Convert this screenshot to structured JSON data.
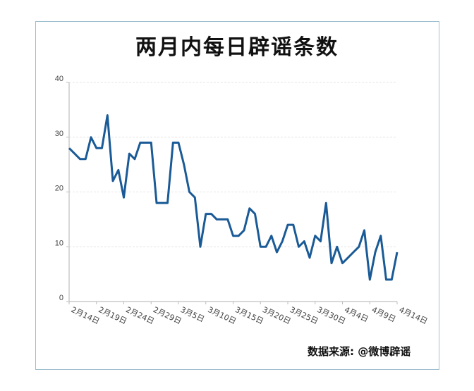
{
  "chart_data": {
    "type": "line",
    "title": "两月内每日辟谣条数",
    "xlabel": "",
    "ylabel": "",
    "ylim": [
      0,
      40
    ],
    "yticks": [
      0,
      10,
      20,
      30,
      40
    ],
    "grid": true,
    "legend": null,
    "x_tick_labels": [
      "2月14日",
      "2月19日",
      "2月24日",
      "2月29日",
      "3月5日",
      "3月10日",
      "3月15日",
      "3月20日",
      "3月25日",
      "3月30日",
      "4月4日",
      "4月9日",
      "4月14日"
    ],
    "x_start": "2月14日",
    "x_end": "4月14日",
    "series": [
      {
        "name": "每日辟谣条数",
        "color": "#1a5a96",
        "values": [
          28,
          27,
          26,
          26,
          30,
          28,
          28,
          34,
          22,
          24,
          19,
          27,
          26,
          29,
          29,
          29,
          18,
          18,
          18,
          29,
          29,
          25,
          20,
          19,
          10,
          16,
          16,
          15,
          15,
          15,
          12,
          12,
          13,
          17,
          16,
          10,
          10,
          12,
          9,
          11,
          14,
          14,
          10,
          11,
          8,
          12,
          11,
          18,
          7,
          10,
          7,
          8,
          9,
          10,
          13,
          4,
          9,
          12,
          4,
          4,
          9
        ]
      }
    ],
    "source": "数据来源: @微博辟谣"
  },
  "title": "两月内每日辟谣条数",
  "footer": "数据来源: @微博辟谣"
}
